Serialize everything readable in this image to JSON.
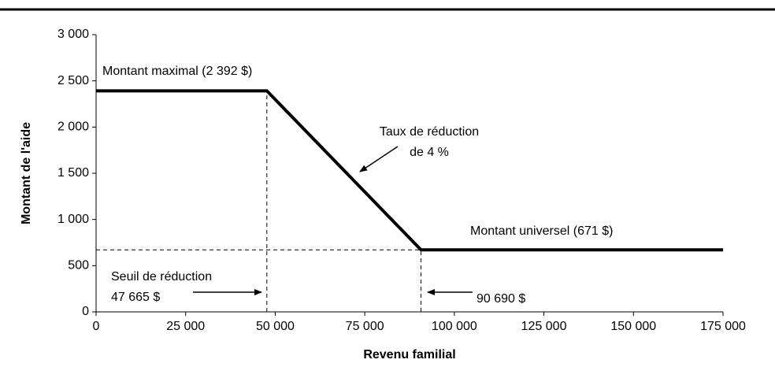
{
  "chart_data": {
    "type": "line",
    "x_label": "Revenu familial",
    "y_label": "Montant de l'aide",
    "x": [
      0,
      47665,
      90690,
      175000
    ],
    "series": [
      {
        "color": "#000000",
        "values": [
          2392,
          2392,
          671,
          671
        ]
      }
    ],
    "xlim": [
      0,
      175000
    ],
    "ylim": [
      0,
      3000
    ],
    "xticks": [
      0,
      {
        "value": 25000,
        "label": "25 000"
      },
      {
        "value": 50000,
        "label": "50 000"
      },
      {
        "value": 75000,
        "label": "75 000"
      },
      {
        "value": 100000,
        "label": "100 000"
      },
      {
        "value": 125000,
        "label": "125 000"
      },
      {
        "value": 150000,
        "label": "150 000"
      },
      {
        "value": 175000,
        "label": "175 000"
      }
    ],
    "yticks": [
      0,
      500,
      {
        "value": 1000,
        "label": "1 000"
      },
      {
        "value": 1500,
        "label": "1 500"
      },
      {
        "value": 2000,
        "label": "2 000"
      },
      {
        "value": 2500,
        "label": "2 500"
      },
      {
        "value": 3000,
        "label": "3 000"
      }
    ],
    "annotations": [
      "Montant maximal (2 392 $)",
      "Taux de réduction",
      "de 4 %",
      "Montant universel (671 $)",
      "Seuil de réduction",
      "47 665 $",
      "90 690 $"
    ]
  }
}
